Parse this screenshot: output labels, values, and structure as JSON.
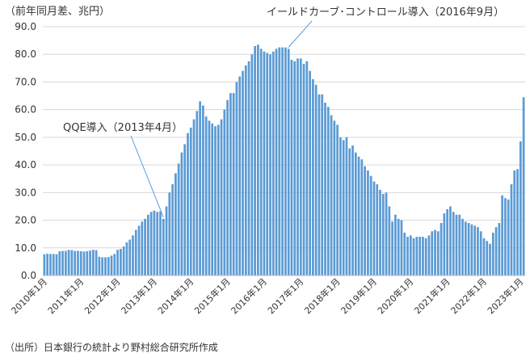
{
  "chart_data": {
    "type": "bar",
    "unit_label": "（前年同月差、兆円）",
    "source_note": "（出所）日本銀行の統計より野村総合研究所作成",
    "ylim": [
      0,
      90
    ],
    "yticks": [
      "0.0",
      "10.0",
      "20.0",
      "30.0",
      "40.0",
      "50.0",
      "60.0",
      "70.0",
      "80.0",
      "90.0"
    ],
    "grid": true,
    "bar_color": "#5b9bd5",
    "grid_color": "#d9d9d9",
    "x_tick_labels": [
      "2010年1月",
      "2011年1月",
      "2012年1月",
      "2013年1月",
      "2014年1月",
      "2015年1月",
      "2016年1月",
      "2017年1月",
      "2018年1月",
      "2019年1月",
      "2020年1月",
      "2021年1月",
      "2022年1月",
      "2023年1月"
    ],
    "annotations": [
      {
        "text": "QQE導入（2013年4月）",
        "month_index": 39
      },
      {
        "text": "イールドカーブ･コントロール導入（2016年9月）",
        "month_index": 80
      }
    ],
    "values": [
      7.7,
      7.9,
      7.8,
      7.8,
      7.7,
      8.8,
      8.9,
      8.9,
      9.3,
      9.2,
      8.9,
      8.9,
      8.8,
      8.7,
      8.8,
      9.0,
      9.3,
      9.2,
      6.8,
      6.6,
      6.6,
      6.7,
      7.2,
      7.8,
      9.3,
      9.6,
      10.5,
      12.0,
      13.0,
      14.5,
      16.5,
      18.0,
      19.5,
      20.5,
      22.0,
      23.0,
      23.5,
      23.0,
      23.2,
      20.5,
      25.0,
      30.0,
      33.0,
      37.0,
      40.5,
      44.5,
      47.5,
      51.5,
      53.5,
      56.5,
      59.5,
      63.0,
      61.5,
      57.5,
      56.0,
      55.0,
      54.0,
      54.5,
      56.5,
      60.0,
      63.5,
      66.0,
      66.0,
      70.0,
      72.0,
      74.0,
      76.0,
      77.5,
      80.0,
      83.0,
      83.5,
      82.0,
      81.0,
      80.5,
      80.0,
      81.0,
      82.0,
      82.5,
      82.5,
      82.5,
      82.0,
      78.0,
      77.5,
      78.5,
      78.5,
      76.5,
      77.5,
      74.0,
      71.0,
      69.0,
      65.5,
      65.5,
      62.5,
      61.0,
      58.0,
      56.0,
      54.5,
      50.0,
      49.0,
      50.0,
      46.0,
      47.0,
      44.5,
      43.0,
      42.0,
      39.5,
      38.0,
      36.0,
      34.0,
      33.0,
      31.0,
      29.5,
      30.0,
      25.0,
      19.5,
      22.0,
      20.5,
      20.0,
      15.5,
      14.0,
      14.5,
      13.5,
      14.0,
      14.0,
      14.0,
      13.5,
      14.5,
      16.0,
      16.5,
      16.0,
      19.0,
      22.5,
      24.0,
      25.0,
      23.0,
      22.0,
      22.0,
      20.5,
      19.5,
      19.0,
      18.5,
      18.0,
      17.5,
      16.0,
      13.5,
      12.5,
      11.5,
      15.5,
      17.5,
      19.0,
      29.0,
      28.0,
      27.5,
      33.0,
      38.0,
      38.5,
      48.5,
      64.5
    ]
  }
}
